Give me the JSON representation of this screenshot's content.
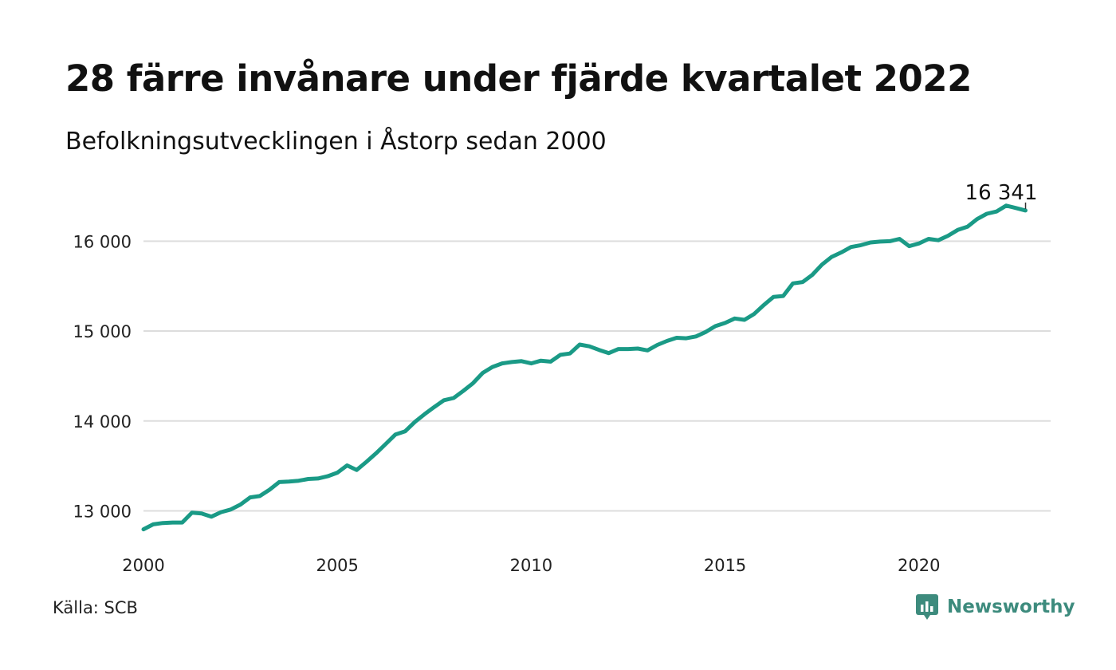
{
  "title": "28 färre invånare under fjärde kvartalet 2022",
  "subtitle": "Befolkningsutvecklingen i Åstorp sedan 2000",
  "source": "Källa: SCB",
  "brand": "Newsworthy",
  "colors": {
    "line": "#1a9a86",
    "grid": "#dddddd",
    "brand": "#3d8b7d"
  },
  "chart_data": {
    "type": "line",
    "x_start": 2000,
    "x_step": 0.25,
    "xlim": [
      2000,
      2023.5
    ],
    "ylim": [
      12800,
      16500
    ],
    "xticks": [
      2000,
      2005,
      2010,
      2015,
      2020
    ],
    "xtick_labels": [
      "2000",
      "2005",
      "2010",
      "2015",
      "2020"
    ],
    "yticks": [
      13000,
      14000,
      15000,
      16000
    ],
    "ytick_labels": [
      "13 000",
      "14 000",
      "15 000",
      "16 000"
    ],
    "end_label": "16 341",
    "grid": true,
    "series": [
      {
        "values": [
          12795,
          12850,
          12865,
          12870,
          12870,
          12980,
          12970,
          12935,
          12985,
          13015,
          13070,
          13150,
          13165,
          13235,
          13320,
          13325,
          13335,
          13355,
          13360,
          13385,
          13425,
          13505,
          13455,
          13545,
          13640,
          13745,
          13850,
          13885,
          13990,
          14075,
          14155,
          14230,
          14255,
          14335,
          14420,
          14535,
          14600,
          14640,
          14655,
          14665,
          14640,
          14670,
          14660,
          14735,
          14750,
          14850,
          14830,
          14790,
          14755,
          14800,
          14800,
          14805,
          14785,
          14845,
          14890,
          14925,
          14920,
          14940,
          14990,
          15055,
          15090,
          15140,
          15125,
          15190,
          15290,
          15380,
          15390,
          15530,
          15545,
          15625,
          15740,
          15825,
          15875,
          15935,
          15955,
          15985,
          15995,
          16000,
          16025,
          15945,
          15975,
          16025,
          16010,
          16060,
          16125,
          16160,
          16245,
          16305,
          16330,
          16395,
          16369,
          16341
        ]
      }
    ]
  }
}
